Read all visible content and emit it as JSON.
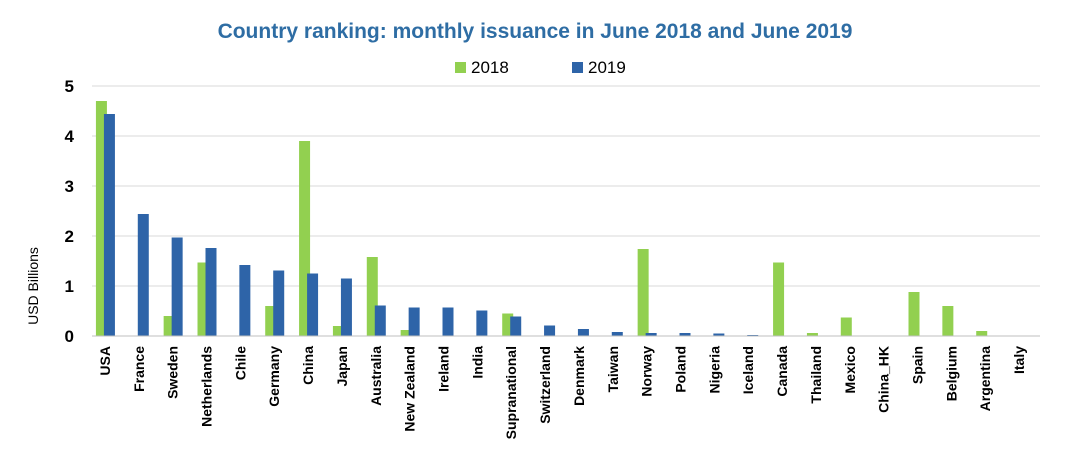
{
  "chart_data": {
    "type": "bar",
    "title": "Country ranking: monthly issuance in June 2018 and June 2019",
    "xlabel": "",
    "ylabel": "USD Billions",
    "ylim": [
      0,
      5
    ],
    "yticks": [
      0,
      1,
      2,
      3,
      4,
      5
    ],
    "grid": true,
    "legend_position": "top",
    "categories": [
      "USA",
      "France",
      "Sweden",
      "Netherlands",
      "Chile",
      "Germany",
      "China",
      "Japan",
      "Australia",
      "New Zealand",
      "Ireland",
      "India",
      "Supranational",
      "Switzerland",
      "Denmark",
      "Taiwan",
      "Norway",
      "Poland",
      "Nigeria",
      "Iceland",
      "Canada",
      "Thailand",
      "Mexico",
      "China_HK",
      "Spain",
      "Belgium",
      "Argentina",
      "Italy"
    ],
    "series": [
      {
        "name": "2018",
        "color": "#92d050",
        "values": [
          4.7,
          0,
          0.4,
          1.47,
          0,
          0.6,
          3.9,
          0.2,
          1.58,
          0.12,
          0,
          0,
          0.45,
          0,
          0,
          0,
          1.74,
          0,
          0,
          0,
          1.47,
          0.06,
          0.37,
          0,
          0.88,
          0.6,
          0.1,
          0
        ]
      },
      {
        "name": "2019",
        "color": "#2e64a8",
        "values": [
          4.44,
          2.44,
          1.97,
          1.76,
          1.42,
          1.31,
          1.25,
          1.15,
          0.61,
          0.57,
          0.57,
          0.51,
          0.39,
          0.21,
          0.14,
          0.08,
          0.06,
          0.06,
          0.05,
          0.02,
          0,
          0,
          0,
          0,
          0,
          0,
          0,
          0
        ]
      }
    ]
  }
}
